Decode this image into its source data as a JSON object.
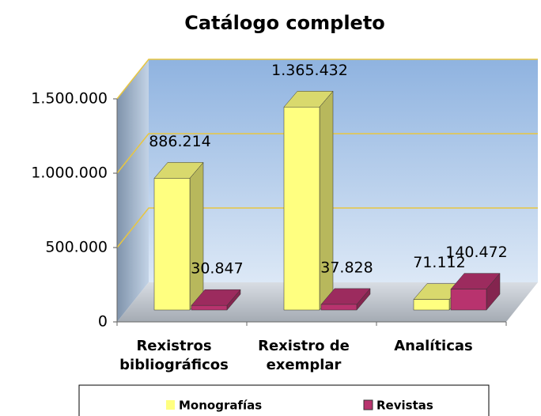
{
  "chart_data": {
    "type": "bar3d",
    "title": "Catálogo completo",
    "categories": [
      "Rexistros bibliográficos",
      "Rexistro de exemplar",
      "Analíticas"
    ],
    "series": [
      {
        "name": "Monografías",
        "color": "#ffff80",
        "values": [
          886214,
          1365432,
          71112
        ],
        "value_labels": [
          "886.214",
          "1.365.432",
          "71.112"
        ]
      },
      {
        "name": "Revistas",
        "color": "#b8336e",
        "values": [
          30847,
          37828,
          140472
        ],
        "value_labels": [
          "30.847",
          "37.828",
          "140.472"
        ]
      }
    ],
    "ylim": [
      0,
      1500000
    ],
    "yticks": [
      0,
      {
        "value": 500000,
        "label": "500.000"
      },
      {
        "value": 1000000,
        "label": "1.000.000"
      },
      {
        "value": 1500000,
        "label": "1.500.000"
      }
    ],
    "grid": true,
    "legend": "bottom"
  }
}
